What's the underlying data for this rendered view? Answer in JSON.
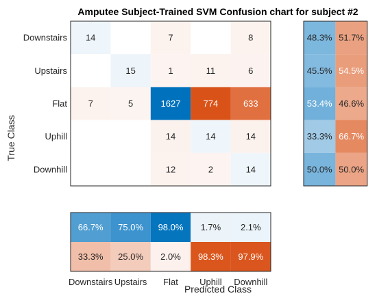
{
  "chart_data": {
    "type": "heatmap",
    "title": "Amputee Subject-Trained SVM Confusion chart for subject #2",
    "xlabel": "Predicted Class",
    "ylabel": "True Class",
    "classes": [
      "Downstairs",
      "Upstairs",
      "Flat",
      "Uphill",
      "Downhill"
    ],
    "matrix": [
      [
        14,
        null,
        7,
        null,
        8
      ],
      [
        null,
        15,
        1,
        11,
        6
      ],
      [
        7,
        5,
        1627,
        774,
        633
      ],
      [
        null,
        null,
        14,
        14,
        14
      ],
      [
        null,
        null,
        12,
        2,
        14
      ]
    ],
    "row_summary": {
      "correct": [
        "48.3%",
        "45.5%",
        "53.4%",
        "33.3%",
        "50.0%"
      ],
      "incorrect": [
        "51.7%",
        "54.5%",
        "46.6%",
        "66.7%",
        "50.0%"
      ]
    },
    "column_summary": {
      "correct": [
        "66.7%",
        "75.0%",
        "98.0%",
        "1.7%",
        "2.1%"
      ],
      "incorrect": [
        "33.3%",
        "25.0%",
        "2.0%",
        "98.3%",
        "97.9%"
      ]
    },
    "colors": {
      "diagonal": "#0072bd",
      "off_diagonal": "#d95319",
      "correct_summary": "#0072bd",
      "incorrect_summary": "#d95319"
    }
  }
}
